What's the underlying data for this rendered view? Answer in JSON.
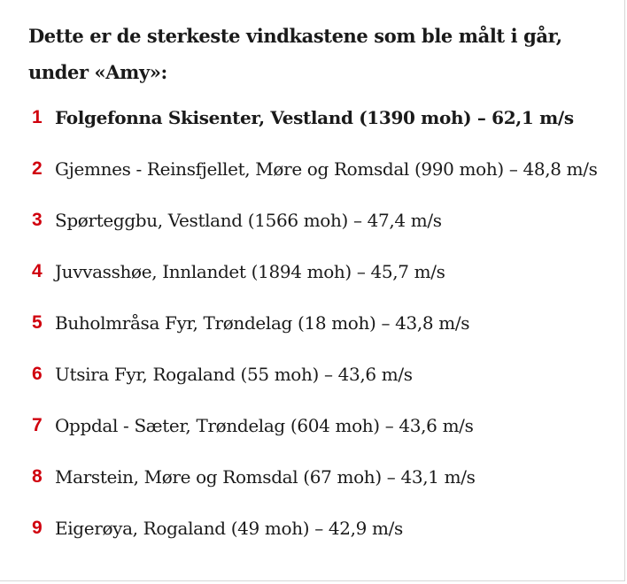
{
  "heading": "Dette er de sterkeste vindkastene som ble målt i går, under «Amy»:",
  "list": {
    "accent_color": "#d0000d",
    "items": [
      {
        "number": "1",
        "text": "Folgefonna Skisenter, Vestland (1390 moh) – 62,1 m/s"
      },
      {
        "number": "2",
        "text": "Gjemnes - Reinsfjellet, Møre og Romsdal (990 moh) – 48,8 m/s"
      },
      {
        "number": "3",
        "text": "Spørteggbu, Vestland (1566 moh) – 47,4 m/s"
      },
      {
        "number": "4",
        "text": "Juvvasshøe, Innlandet (1894 moh) – 45,7 m/s"
      },
      {
        "number": "5",
        "text": "Buholmråsa Fyr, Trøndelag (18 moh) – 43,8 m/s"
      },
      {
        "number": "6",
        "text": "Utsira Fyr, Rogaland (55 moh) – 43,6 m/s"
      },
      {
        "number": "7",
        "text": "Oppdal - Sæter, Trøndelag (604 moh) – 43,6 m/s"
      },
      {
        "number": "8",
        "text": "Marstein, Møre og Romsdal (67 moh) – 43,1 m/s"
      },
      {
        "number": "9",
        "text": "Eigerøya, Rogaland (49 moh) – 42,9 m/s"
      }
    ]
  }
}
